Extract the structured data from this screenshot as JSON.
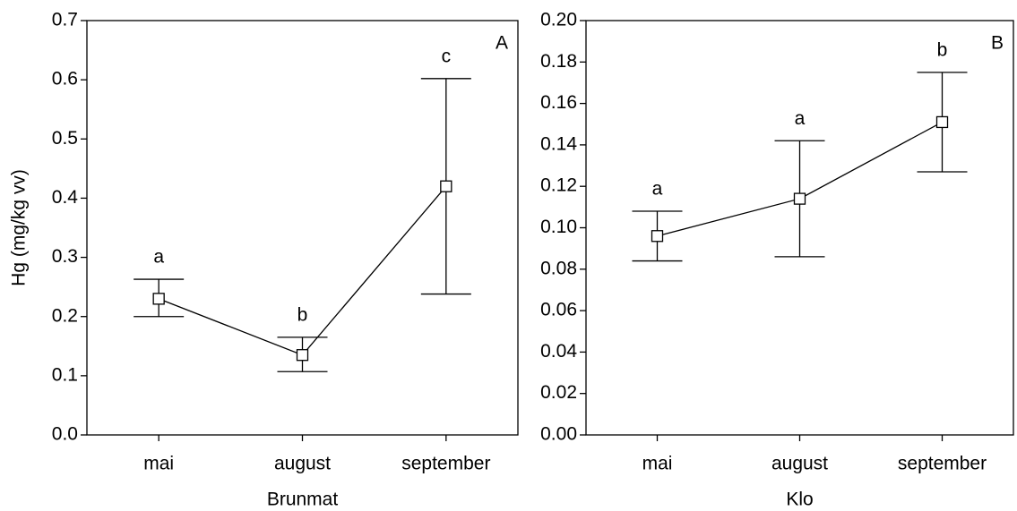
{
  "chart_data": [
    {
      "type": "line",
      "panel": "A",
      "x_label": "Brunmat",
      "y_label": "Hg (mg/kg vv)",
      "categories": [
        "mai",
        "august",
        "september"
      ],
      "values": [
        0.23,
        0.135,
        0.42
      ],
      "lower": [
        0.2,
        0.107,
        0.238
      ],
      "upper": [
        0.263,
        0.165,
        0.602
      ],
      "annotations": [
        "a",
        "b",
        "c"
      ],
      "color": "#000000",
      "ylim": [
        0,
        0.7
      ],
      "yticks": [
        {
          "value": 0,
          "label": "0.0"
        },
        0.1,
        0.2,
        0.3,
        0.4,
        0.5,
        0.6,
        0.7
      ]
    },
    {
      "type": "line",
      "panel": "B",
      "x_label": "Klo",
      "categories": [
        "mai",
        "august",
        "september"
      ],
      "values": [
        0.096,
        0.114,
        0.151
      ],
      "lower": [
        0.084,
        0.086,
        0.127
      ],
      "upper": [
        0.108,
        0.142,
        0.175
      ],
      "annotations": [
        "a",
        "a",
        "b"
      ],
      "color": "#000000",
      "ylim": [
        0,
        0.2
      ],
      "yticks": [
        {
          "value": 0,
          "label": "0.00"
        },
        {
          "value": 0.02,
          "label": "0.02"
        },
        {
          "value": 0.04,
          "label": "0.04"
        },
        {
          "value": 0.06,
          "label": "0.06"
        },
        {
          "value": 0.08,
          "label": "0.08"
        },
        {
          "value": 0.1,
          "label": "0.10"
        },
        {
          "value": 0.12,
          "label": "0.12"
        },
        {
          "value": 0.14,
          "label": "0.14"
        },
        {
          "value": 0.16,
          "label": "0.16"
        },
        {
          "value": 0.18,
          "label": "0.18"
        },
        {
          "value": 0.2,
          "label": "0.20"
        }
      ]
    }
  ]
}
